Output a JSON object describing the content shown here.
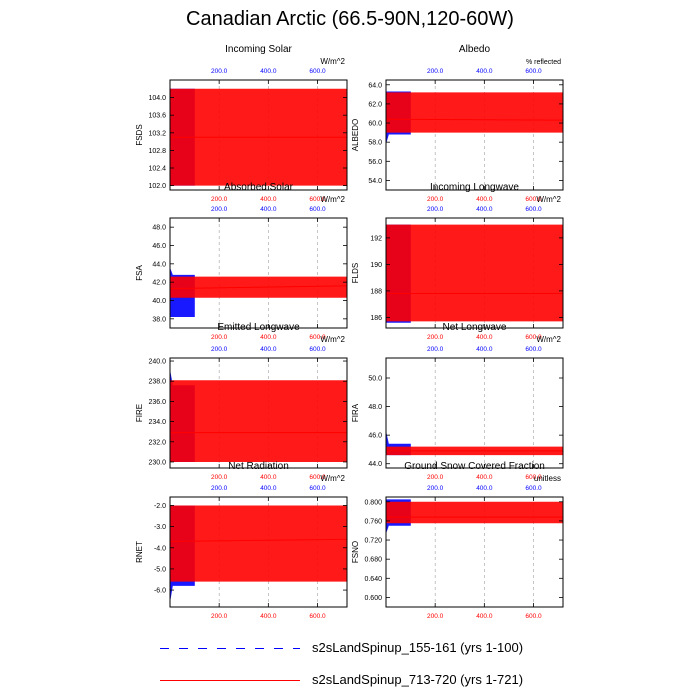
{
  "title": "Canadian Arctic (66.5-90N,120-60W)",
  "colors": {
    "series1": "#0000ff",
    "series2": "#ff0000",
    "grid": "#a0a0a0"
  },
  "legend": {
    "items": [
      {
        "label": "s2sLandSpinup_155-161 (yrs 1-100)",
        "color": "#0000ff",
        "style": "dashed"
      },
      {
        "label": "s2sLandSpinup_713-720 (yrs 1-721)",
        "color": "#ff0000",
        "style": "solid"
      }
    ]
  },
  "chart_data": [
    {
      "type": "line",
      "title": "Incoming Solar",
      "ylabel": "FSDS",
      "units": "W/m^2",
      "xlim": [
        0,
        720
      ],
      "ylim": [
        101.9,
        104.4
      ],
      "yticks": [
        "102.0",
        "102.4",
        "102.8",
        "103.2",
        "103.6",
        "104.0"
      ],
      "xticks": [
        "200.0",
        "400.0",
        "600.0"
      ],
      "series": [
        {
          "years": 100,
          "min": 102.0,
          "max": 104.2,
          "mean_start": 103.1,
          "mean_end": 103.1
        },
        {
          "years": 721,
          "min": 102.0,
          "max": 104.2,
          "mean_start": 103.1,
          "mean_end": 103.1
        }
      ]
    },
    {
      "type": "line",
      "title": "Albedo",
      "ylabel": "ALBEDO",
      "units": "% reflected",
      "xlim": [
        0,
        720
      ],
      "ylim": [
        53.0,
        64.5
      ],
      "yticks": [
        "54.0",
        "56.0",
        "58.0",
        "60.0",
        "62.0",
        "64.0"
      ],
      "xticks": [
        "200.0",
        "400.0",
        "600.0"
      ],
      "series": [
        {
          "years": 100,
          "min": 58.8,
          "max": 63.3,
          "mean_start": 59.6,
          "mean_end": 60.3,
          "spin_from": 57.9
        },
        {
          "years": 721,
          "min": 59.0,
          "max": 63.2,
          "mean_start": 60.4,
          "mean_end": 60.3
        }
      ]
    },
    {
      "type": "line",
      "title": "Absorbed Solar",
      "ylabel": "FSA",
      "units": "W/m^2",
      "xlim": [
        0,
        720
      ],
      "ylim": [
        37.0,
        49.0
      ],
      "yticks": [
        "38.0",
        "40.0",
        "42.0",
        "44.0",
        "46.0",
        "48.0"
      ],
      "xticks": [
        "200.0",
        "400.0",
        "600.0"
      ],
      "series": [
        {
          "years": 100,
          "min": 38.2,
          "max": 42.8,
          "mean_start": 41.8,
          "mean_end": 41.4,
          "spin_from": 43.5
        },
        {
          "years": 721,
          "min": 40.3,
          "max": 42.6,
          "mean_start": 41.3,
          "mean_end": 41.6
        }
      ]
    },
    {
      "type": "line",
      "title": "Incoming Longwave",
      "ylabel": "FLDS",
      "units": "W/m^2",
      "xlim": [
        0,
        720
      ],
      "ylim": [
        185.2,
        193.5
      ],
      "yticks": [
        "186",
        "188",
        "190",
        "192"
      ],
      "xticks": [
        "200.0",
        "400.0",
        "600.0"
      ],
      "series": [
        {
          "years": 100,
          "min": 185.6,
          "max": 193.0,
          "mean_start": 187.7,
          "mean_end": 187.7
        },
        {
          "years": 721,
          "min": 185.7,
          "max": 193.0,
          "mean_start": 187.8,
          "mean_end": 187.8
        }
      ]
    },
    {
      "type": "line",
      "title": "Emitted Longwave",
      "ylabel": "FIRE",
      "units": "W/m^2",
      "xlim": [
        0,
        720
      ],
      "ylim": [
        229.4,
        240.3
      ],
      "yticks": [
        "230.0",
        "232.0",
        "234.0",
        "236.0",
        "238.0",
        "240.0"
      ],
      "xticks": [
        "200.0",
        "400.0",
        "600.0"
      ],
      "series": [
        {
          "years": 100,
          "min": 230.0,
          "max": 237.6,
          "mean_start": 233.0,
          "mean_end": 232.8,
          "spin_from": 239.0
        },
        {
          "years": 721,
          "min": 230.0,
          "max": 238.1,
          "mean_start": 232.9,
          "mean_end": 232.9
        }
      ]
    },
    {
      "type": "line",
      "title": "Net Longwave",
      "ylabel": "FIRA",
      "units": "W/m^2",
      "xlim": [
        0,
        720
      ],
      "ylim": [
        43.7,
        51.4
      ],
      "yticks": [
        "44.0",
        "46.0",
        "48.0",
        "50.0"
      ],
      "xticks": [
        "200.0",
        "400.0",
        "600.0"
      ],
      "series": [
        {
          "years": 100,
          "min": 44.6,
          "max": 45.4,
          "mean_start": 45.0,
          "mean_end": 44.9,
          "spin_from": 46.2
        },
        {
          "years": 721,
          "min": 44.6,
          "max": 45.2,
          "mean_start": 44.9,
          "mean_end": 44.9
        }
      ]
    },
    {
      "type": "line",
      "title": "Net Radiation",
      "ylabel": "RNET",
      "units": "W/m^2",
      "xlim": [
        0,
        720
      ],
      "ylim": [
        -6.8,
        -1.6
      ],
      "yticks": [
        "-6.0",
        "-5.0",
        "-4.0",
        "-3.0",
        "-2.0"
      ],
      "xticks": [
        "200.0",
        "400.0",
        "600.0"
      ],
      "series": [
        {
          "years": 100,
          "min": -5.8,
          "max": -2.0,
          "mean_start": -3.8,
          "mean_end": -3.7,
          "spin_from": -6.5
        },
        {
          "years": 721,
          "min": -5.6,
          "max": -2.0,
          "mean_start": -3.7,
          "mean_end": -3.6
        }
      ]
    },
    {
      "type": "line",
      "title": "Ground Snow Covered Fraction",
      "ylabel": "FSNO",
      "units": "unitless",
      "xlim": [
        0,
        720
      ],
      "ylim": [
        0.58,
        0.81
      ],
      "yticks": [
        "0.600",
        "0.640",
        "0.680",
        "0.720",
        "0.760",
        "0.800"
      ],
      "xticks": [
        "200.0",
        "400.0",
        "600.0"
      ],
      "series": [
        {
          "years": 100,
          "min": 0.75,
          "max": 0.805,
          "mean_start": 0.765,
          "mean_end": 0.77,
          "spin_from": 0.735
        },
        {
          "years": 721,
          "min": 0.755,
          "max": 0.8,
          "mean_start": 0.768,
          "mean_end": 0.768
        }
      ]
    }
  ]
}
